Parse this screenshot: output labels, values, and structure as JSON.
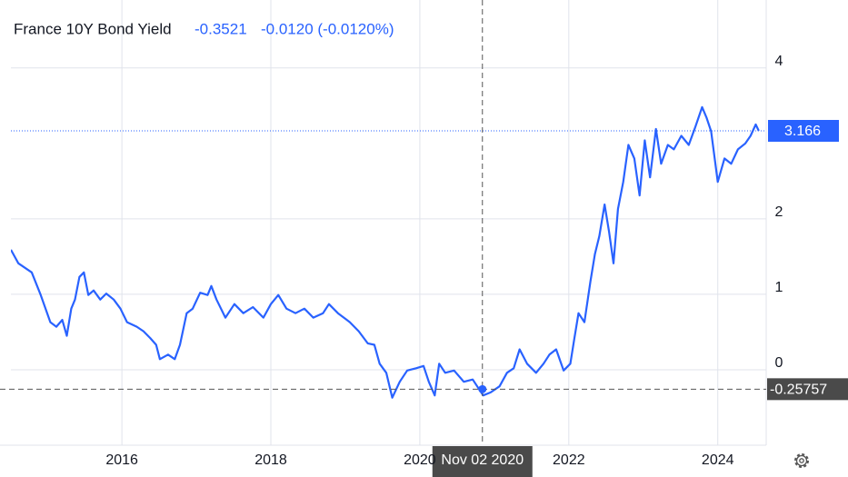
{
  "chart_data": {
    "type": "line",
    "title": "France 10Y Bond Yield",
    "header_value": "-0.3521",
    "header_change": "-0.0120 (-0.0120%)",
    "x": [
      2014.51,
      2014.61,
      2014.79,
      2014.91,
      2015.04,
      2015.12,
      2015.2,
      2015.26,
      2015.32,
      2015.37,
      2015.43,
      2015.49,
      2015.55,
      2015.62,
      2015.71,
      2015.79,
      2015.89,
      2015.98,
      2016.07,
      2016.2,
      2016.29,
      2016.38,
      2016.46,
      2016.51,
      2016.62,
      2016.71,
      2016.78,
      2016.87,
      2016.95,
      2017.05,
      2017.15,
      2017.2,
      2017.27,
      2017.39,
      2017.51,
      2017.63,
      2017.76,
      2017.9,
      2018.0,
      2018.1,
      2018.21,
      2018.33,
      2018.45,
      2018.57,
      2018.7,
      2018.78,
      2018.9,
      2019.06,
      2019.18,
      2019.3,
      2019.39,
      2019.46,
      2019.55,
      2019.63,
      2019.73,
      2019.83,
      2019.95,
      2020.05,
      2020.12,
      2020.2,
      2020.26,
      2020.34,
      2020.46,
      2020.59,
      2020.71,
      2020.85,
      2020.95,
      2021.07,
      2021.17,
      2021.26,
      2021.34,
      2021.44,
      2021.56,
      2021.66,
      2021.74,
      2021.83,
      2021.93,
      2022.02,
      2022.07,
      2022.13,
      2022.21,
      2022.29,
      2022.35,
      2022.41,
      2022.48,
      2022.54,
      2022.6,
      2022.66,
      2022.73,
      2022.8,
      2022.88,
      2022.95,
      2023.02,
      2023.09,
      2023.17,
      2023.24,
      2023.33,
      2023.41,
      2023.51,
      2023.61,
      2023.7,
      2023.79,
      2023.85,
      2023.91,
      2024.0,
      2024.09,
      2024.18,
      2024.27,
      2024.37,
      2024.44,
      2024.51,
      2024.55
    ],
    "series": [
      {
        "name": "France 10Y Bond Yield",
        "color": "#2962ff",
        "values": [
          1.59,
          1.41,
          1.29,
          0.99,
          0.63,
          0.57,
          0.66,
          0.45,
          0.81,
          0.93,
          1.23,
          1.29,
          0.99,
          1.05,
          0.93,
          1.01,
          0.93,
          0.81,
          0.63,
          0.57,
          0.51,
          0.42,
          0.33,
          0.14,
          0.2,
          0.14,
          0.33,
          0.75,
          0.81,
          1.02,
          0.99,
          1.11,
          0.93,
          0.69,
          0.87,
          0.75,
          0.83,
          0.69,
          0.87,
          0.99,
          0.81,
          0.75,
          0.81,
          0.69,
          0.75,
          0.87,
          0.75,
          0.63,
          0.51,
          0.35,
          0.33,
          0.08,
          -0.04,
          -0.37,
          -0.16,
          -0.01,
          0.02,
          0.05,
          -0.16,
          -0.34,
          0.08,
          -0.04,
          -0.01,
          -0.16,
          -0.13,
          -0.34,
          -0.3,
          -0.22,
          -0.04,
          0.02,
          0.27,
          0.08,
          -0.04,
          0.08,
          0.2,
          0.27,
          -0.01,
          0.08,
          0.39,
          0.75,
          0.63,
          1.17,
          1.53,
          1.77,
          2.19,
          1.83,
          1.41,
          2.13,
          2.49,
          2.98,
          2.8,
          2.31,
          3.04,
          2.55,
          3.19,
          2.73,
          2.98,
          2.92,
          3.1,
          2.98,
          3.22,
          3.48,
          3.34,
          3.16,
          2.49,
          2.8,
          2.73,
          2.92,
          3.0,
          3.1,
          3.25,
          3.166
        ]
      }
    ],
    "last_value": 3.166,
    "crosshair": {
      "x": 2020.84,
      "x_label": "Nov 02 2020",
      "y": -0.25757
    },
    "xlim": [
      2014.51,
      2024.65
    ],
    "xticks": [
      2016,
      2018,
      2020,
      2022,
      2024
    ],
    "ylim": [
      -1.0,
      4.9
    ],
    "yticks": [
      0,
      1,
      2,
      4
    ],
    "grid": true
  }
}
